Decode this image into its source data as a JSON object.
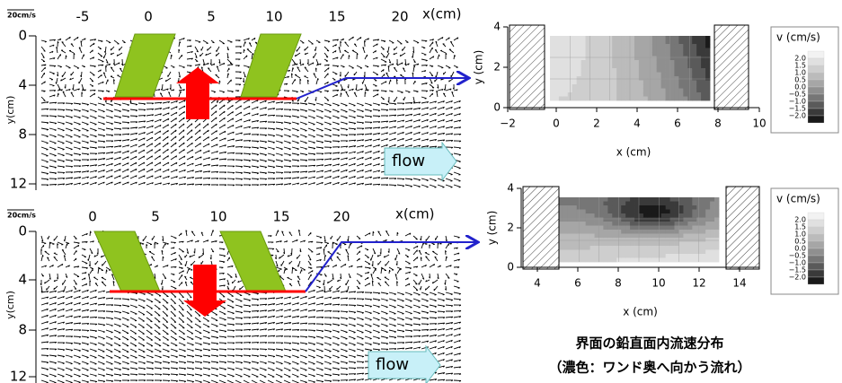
{
  "panels": [
    {
      "scale_label": "20cm/s",
      "x_label": "x(cm)",
      "y_label": "y(cm)",
      "x_ticks": [
        "-5",
        "0",
        "5",
        "10",
        "15",
        "20"
      ],
      "y_ticks": [
        "0",
        "4",
        "8",
        "12"
      ],
      "flow_label": "flow"
    },
    {
      "scale_label": "20cm/s",
      "x_label": "x(cm)",
      "y_label": "y(cm)",
      "x_ticks": [
        "0",
        "5",
        "10",
        "15",
        "20"
      ],
      "y_ticks": [
        "0",
        "4",
        "8",
        "12"
      ],
      "flow_label": "flow"
    }
  ],
  "contours": [
    {
      "x_label": "x (cm)",
      "y_label": "y (cm)",
      "x_ticks": [
        "−2",
        "0",
        "2",
        "4",
        "6",
        "8",
        "10"
      ],
      "y_ticks": [
        "4",
        "2",
        "0"
      ],
      "legend_title": "v (cm/s)",
      "legend_labels": [
        "2.0",
        "1.5",
        "1.0",
        "0.5",
        "0.0",
        "−0.5",
        "−1.0",
        "−1.5",
        "−2.0"
      ]
    },
    {
      "x_label": "x (cm)",
      "y_label": "y (cm)",
      "x_ticks": [
        "4",
        "6",
        "8",
        "10",
        "12",
        "14"
      ],
      "y_ticks": [
        "4",
        "2",
        "0"
      ],
      "legend_title": "v (cm/s)",
      "legend_labels": [
        "2.0",
        "1.5",
        "1.0",
        "0.5",
        "0.0",
        "−0.5",
        "−1.0",
        "−1.5",
        "−2.0"
      ]
    }
  ],
  "caption": {
    "line1": "界面の鉛直面内流速分布",
    "line2": "（濃色：ワンド奥へ向かう流れ）"
  }
}
